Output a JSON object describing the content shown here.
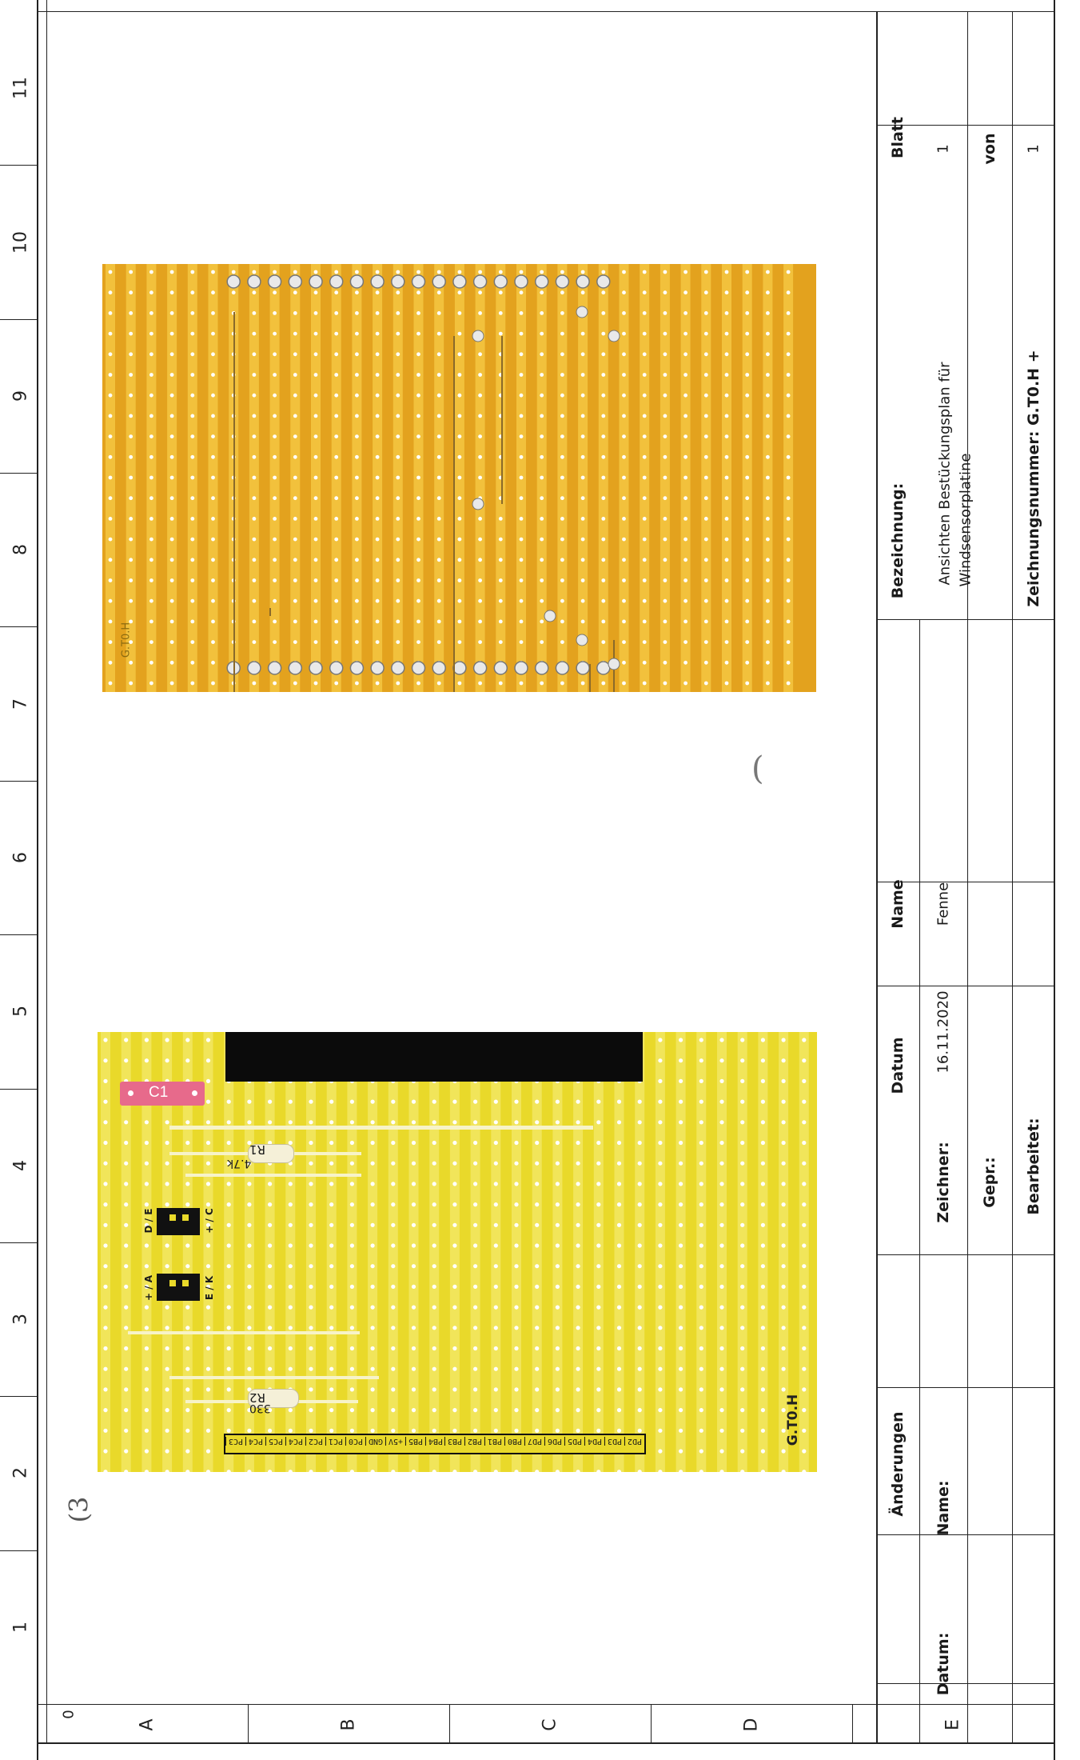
{
  "frame": {
    "column_numbers": [
      "1",
      "2",
      "3",
      "4",
      "5",
      "6",
      "7",
      "8",
      "9",
      "10",
      "11"
    ],
    "row_letters": [
      "A",
      "B",
      "C",
      "D",
      "E"
    ],
    "corner_mark": "0"
  },
  "title_block": {
    "aenderungen": "Änderungen",
    "datum_label": "Datum:",
    "name_label": "Name:",
    "col_datum": "Datum",
    "col_name": "Name",
    "zeichner_label": "Zeichner:",
    "zeichner_datum": "16.11.2020",
    "zeichner_name": "Fenne",
    "gepr_label": "Gepr.:",
    "bearbeitet_label": "Bearbeitet:",
    "bezeichnung_label": "Bezeichnung:",
    "bezeichnung_line1": "Ansichten Bestückungsplan für",
    "bezeichnung_line2": "Windsensorplatine",
    "zeichnungsnummer": "Zeichnungsnummer: G.T0.H +",
    "blatt_label": "Blatt",
    "blatt_value": "1",
    "von_label": "von",
    "von_value": "1"
  },
  "board_top": {
    "capacitor": "C1",
    "r1_name": "R1",
    "r1_value": "4.7k",
    "r2_name": "R2",
    "r2_value": "330",
    "jumper_labels": [
      "D / E",
      "+ / C",
      "+ / A",
      "E / K"
    ],
    "label": "G.T0.H",
    "header_pins": [
      "PC3",
      "PC4",
      "PC5",
      "PC4",
      "PC2",
      "PC1",
      "PC0",
      "GND",
      "+5V",
      "PB5",
      "PB4",
      "PB3",
      "PB2",
      "PB1",
      "PB0",
      "PD7",
      "PD6",
      "PD5",
      "PD4",
      "PD3",
      "PD2"
    ]
  },
  "board_bottom": {
    "label": "G.T0.H"
  },
  "colors": {
    "board_top_bg": "#e9d92a",
    "board_bottom_bg": "#e3a21e",
    "strip": "#f1e55a",
    "capacitor": "#e76a8b",
    "header": "#111111"
  },
  "handwritten_marks": [
    "(3",
    "("
  ]
}
